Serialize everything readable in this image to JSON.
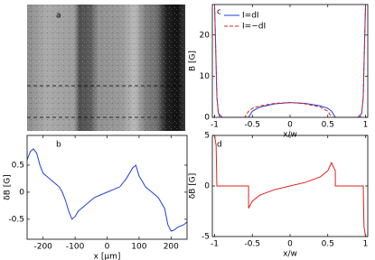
{
  "chart_data": [
    {
      "type": "image",
      "label": "a"
    },
    {
      "type": "line",
      "label": "b",
      "xlabel": "x [μm]",
      "ylabel": "δB [G]",
      "color": "#1f3fdc",
      "x": [
        -250,
        -240,
        -230,
        -220,
        -210,
        -200,
        -190,
        -180,
        -170,
        -160,
        -150,
        -140,
        -130,
        -120,
        -110,
        -100,
        -90,
        -80,
        -60,
        -40,
        -20,
        0,
        20,
        40,
        60,
        80,
        90,
        100,
        110,
        120,
        140,
        160,
        180,
        190,
        200,
        210,
        220,
        240,
        250
      ],
      "values": [
        0.6,
        0.75,
        0.8,
        0.72,
        0.5,
        0.35,
        0.3,
        0.25,
        0.2,
        0.15,
        0.1,
        0.0,
        -0.15,
        -0.35,
        -0.5,
        -0.45,
        -0.35,
        -0.3,
        -0.2,
        -0.1,
        -0.05,
        0,
        0.05,
        0.1,
        0.25,
        0.45,
        0.5,
        0.3,
        0.2,
        0.1,
        0.0,
        -0.1,
        -0.3,
        -0.6,
        -0.72,
        -0.7,
        -0.65,
        -0.6,
        -0.55
      ],
      "xlim": [
        -250,
        250
      ],
      "xticks": [
        -200,
        -100,
        0,
        100,
        200
      ],
      "ylim": [
        -0.87,
        1.05
      ],
      "yticks": [
        -0.5,
        0,
        0.5
      ]
    },
    {
      "type": "line",
      "label": "c",
      "xlabel": "x/w",
      "ylabel": "B [G]",
      "legend": "upper left",
      "series": [
        {
          "name": "I=dI",
          "color": "#1f3fdc",
          "dash": false,
          "x": [
            -1,
            -0.99,
            -0.97,
            -0.95,
            -0.9,
            -0.55,
            -0.5,
            -0.4,
            -0.2,
            0,
            0.2,
            0.4,
            0.5,
            0.55,
            0.6,
            0.9,
            0.95,
            0.97,
            0.99,
            1
          ],
          "values": [
            27,
            20,
            5,
            1,
            0,
            0,
            1.5,
            2.5,
            3.3,
            3.6,
            3.4,
            2.8,
            2.2,
            1.5,
            0,
            0,
            1,
            5,
            20,
            27
          ]
        },
        {
          "name": "I=−dI",
          "color": "#e0201b",
          "dash": true,
          "x": [
            -1,
            -0.99,
            -0.97,
            -0.95,
            -0.93,
            -0.6,
            -0.55,
            -0.5,
            -0.4,
            -0.2,
            0,
            0.2,
            0.4,
            0.5,
            0.55,
            0.93,
            0.95,
            0.97,
            0.99,
            1
          ],
          "values": [
            27,
            20,
            5,
            1,
            0,
            0,
            1.5,
            2.2,
            2.8,
            3.4,
            3.6,
            3.3,
            2.5,
            1.5,
            0,
            0,
            1,
            5,
            20,
            27
          ]
        }
      ],
      "xlim": [
        -1.03,
        1.03
      ],
      "xticks": [
        -1,
        -0.5,
        0,
        0.5,
        1
      ],
      "ylim": [
        0,
        27.4
      ],
      "yticks": [
        0,
        10,
        20
      ]
    },
    {
      "type": "line",
      "label": "d",
      "xlabel": "x/w",
      "ylabel": "δB [G]",
      "color": "#e0201b",
      "x": [
        -1,
        -0.98,
        -0.97,
        -0.55,
        -0.55,
        -0.5,
        -0.4,
        -0.2,
        0,
        0.2,
        0.4,
        0.5,
        0.55,
        0.6,
        0.6,
        0.97,
        0.98,
        1
      ],
      "values": [
        5,
        4,
        0,
        0,
        -2.2,
        -1.5,
        -0.9,
        -0.35,
        0,
        0.35,
        0.9,
        1.5,
        2.3,
        1.5,
        0,
        0,
        -4,
        -5
      ],
      "xlim": [
        -1.03,
        1.03
      ],
      "xticks": [
        -1,
        -0.5,
        0,
        0.5,
        1
      ],
      "ylim": [
        -5,
        5
      ],
      "yticks": [
        -5,
        0,
        5
      ]
    }
  ]
}
